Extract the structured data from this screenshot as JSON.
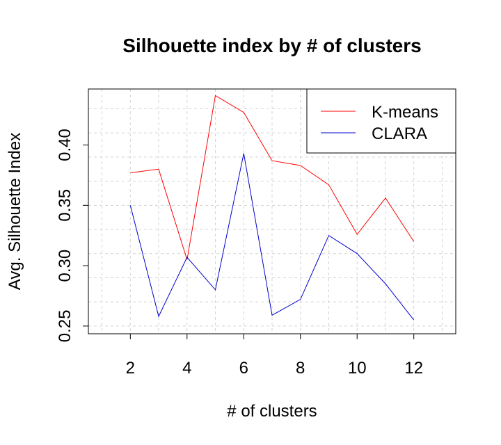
{
  "chart_data": {
    "type": "line",
    "title": "Silhouette index by # of clusters",
    "xlabel": "# of clusters",
    "ylabel": "Avg. Silhouette Index",
    "xlim": [
      0.52,
      13.48
    ],
    "ylim": [
      0.2436,
      0.4464
    ],
    "x_ticks": [
      2,
      4,
      6,
      8,
      10,
      12
    ],
    "x_tick_labels": [
      "2",
      "4",
      "6",
      "8",
      "10",
      "12"
    ],
    "y_ticks": [
      0.25,
      0.3,
      0.35,
      0.4
    ],
    "y_tick_labels": [
      "0.25",
      "0.30",
      "0.35",
      "0.40"
    ],
    "x_grid": [
      1,
      2,
      3,
      4,
      5,
      6,
      7,
      8,
      9,
      10,
      11,
      12,
      13
    ],
    "y_grid": [
      0.25,
      0.27,
      0.29,
      0.31,
      0.33,
      0.35,
      0.37,
      0.39,
      0.41,
      0.43
    ],
    "grid": true,
    "legend_position": "top-right",
    "x": [
      2,
      3,
      4,
      5,
      6,
      7,
      8,
      9,
      10,
      11,
      12
    ],
    "series": [
      {
        "name": "K-means",
        "color": "#ff0000",
        "values": [
          0.377,
          0.38,
          0.305,
          0.441,
          0.427,
          0.387,
          0.383,
          0.367,
          0.326,
          0.356,
          0.32
        ]
      },
      {
        "name": "CLARA",
        "color": "#0000cd",
        "values": [
          0.35,
          0.258,
          0.307,
          0.28,
          0.393,
          0.259,
          0.272,
          0.325,
          0.31,
          0.285,
          0.255
        ]
      }
    ]
  }
}
